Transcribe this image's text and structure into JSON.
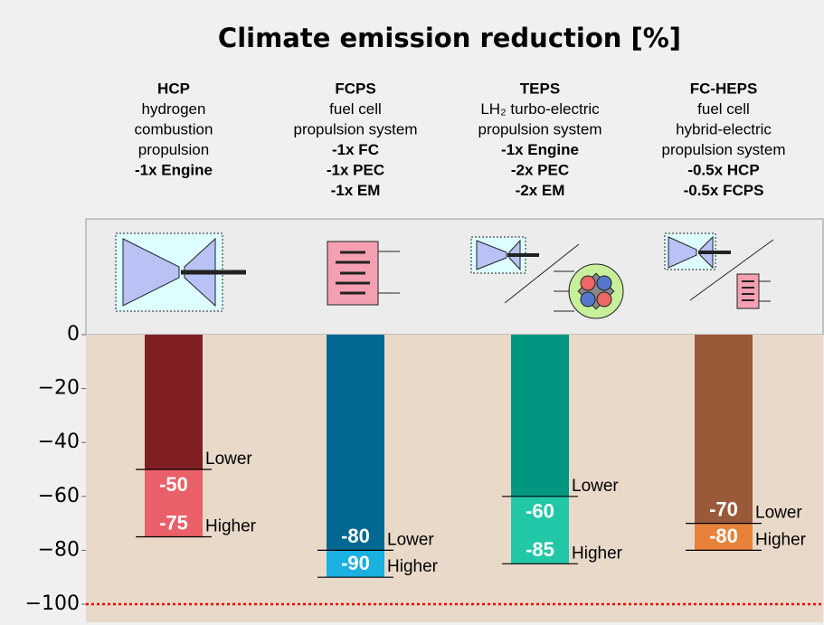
{
  "chart_data": {
    "type": "bar",
    "title": "Climate emission reduction [%]",
    "categories": [
      "HCP",
      "FCPS",
      "TEPS",
      "FC-HEPS"
    ],
    "descriptions": [
      [
        "hydrogen",
        "combustion",
        "propulsion"
      ],
      [
        "fuel cell",
        "propulsion system"
      ],
      [
        "LH₂ turbo-electric",
        "propulsion system"
      ],
      [
        "fuel cell",
        "hybrid-electric",
        "propulsion system"
      ]
    ],
    "components": [
      [
        "-1x Engine"
      ],
      [
        "-1x FC",
        "-1x PEC",
        "-1x EM"
      ],
      [
        "-1x Engine",
        "-2x PEC",
        "-2x EM"
      ],
      [
        "-0.5x HCP",
        "-0.5x FCPS"
      ]
    ],
    "series": [
      {
        "name": "Higher",
        "colors": [
          "#ea6068",
          "#1ab0e0",
          "#22c7a8",
          "#e8823a"
        ],
        "values": [
          -75,
          -90,
          -85,
          -80
        ]
      },
      {
        "name": "Lower",
        "colors": [
          "#7f1f24",
          "#006891",
          "#009680",
          "#9a5a3a"
        ],
        "values": [
          -50,
          -80,
          -60,
          -70
        ]
      }
    ],
    "ylim": [
      -100,
      0
    ],
    "yticks": [
      {
        "value": -100,
        "label": "−100"
      },
      {
        "value": -80,
        "label": "−80"
      },
      {
        "value": -60,
        "label": "−60"
      },
      {
        "value": -40,
        "label": "−40"
      },
      {
        "value": -20,
        "label": "−20"
      },
      0
    ]
  }
}
